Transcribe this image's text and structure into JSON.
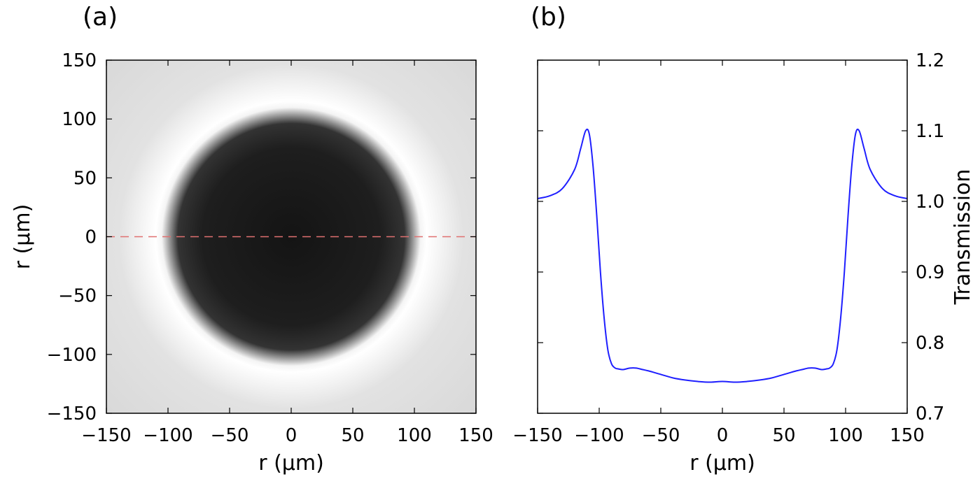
{
  "figure": {
    "panel_a_label": "(a)",
    "panel_b_label": "(b)"
  },
  "chart_data": [
    {
      "type": "heatmap",
      "panel": "(a)",
      "xlabel": "r (μm)",
      "ylabel": "r (μm)",
      "xlim": [
        -150,
        150
      ],
      "ylim": [
        -150,
        150
      ],
      "xticks": [
        -150,
        -100,
        -50,
        0,
        50,
        100,
        150
      ],
      "yticks": [
        -150,
        -100,
        -50,
        0,
        50,
        100,
        150
      ],
      "tick_labels": [
        "−150",
        "−100",
        "−50",
        "0",
        "50",
        "100",
        "150"
      ],
      "colormap": "gray",
      "dark_disk_radius": 97,
      "bright_ring_radius": 110,
      "linecut": {
        "y": 0,
        "style": "dashed",
        "color": "#e07070"
      },
      "colors": {
        "background": "#d8d8d8",
        "ring": "#ffffff",
        "disk": "#1a1a1a"
      }
    },
    {
      "type": "line",
      "panel": "(b)",
      "xlabel": "r (μm)",
      "ylabel": "Transmission",
      "xlim": [
        -150,
        150
      ],
      "ylim": [
        0.7,
        1.2
      ],
      "xticks": [
        -150,
        -100,
        -50,
        0,
        50,
        100,
        150
      ],
      "xtick_labels": [
        "−150",
        "−100",
        "−50",
        "0",
        "50",
        "100",
        "150"
      ],
      "yticks": [
        0.7,
        0.8,
        0.9,
        1.0,
        1.1,
        1.2
      ],
      "ytick_labels": [
        "0.7",
        "0.8",
        "0.9",
        "1.0",
        "1.1",
        "1.2"
      ],
      "y_axis_side": "right",
      "grid": false,
      "series": [
        {
          "color": "#1f1fff",
          "x": [
            -150,
            -140,
            -130,
            -120,
            -115,
            -111,
            -108,
            -105,
            -102,
            -99,
            -96,
            -93,
            -90,
            -87,
            -85,
            -82,
            -80,
            -75,
            -70,
            -65,
            -60,
            -50,
            -40,
            -30,
            -20,
            -10,
            0,
            10,
            20,
            30,
            40,
            50,
            60,
            65,
            70,
            75,
            80,
            82,
            85,
            87,
            90,
            93,
            96,
            99,
            102,
            105,
            108,
            111,
            115,
            120,
            130,
            140,
            150
          ],
          "y": [
            1.004,
            1.008,
            1.018,
            1.045,
            1.075,
            1.1,
            1.095,
            1.05,
            0.98,
            0.9,
            0.835,
            0.79,
            0.77,
            0.764,
            0.763,
            0.762,
            0.762,
            0.764,
            0.764,
            0.762,
            0.76,
            0.755,
            0.75,
            0.747,
            0.745,
            0.744,
            0.745,
            0.744,
            0.745,
            0.747,
            0.75,
            0.755,
            0.76,
            0.762,
            0.764,
            0.764,
            0.762,
            0.762,
            0.763,
            0.764,
            0.77,
            0.79,
            0.835,
            0.9,
            0.98,
            1.05,
            1.095,
            1.1,
            1.075,
            1.045,
            1.018,
            1.008,
            1.004
          ]
        }
      ]
    }
  ]
}
